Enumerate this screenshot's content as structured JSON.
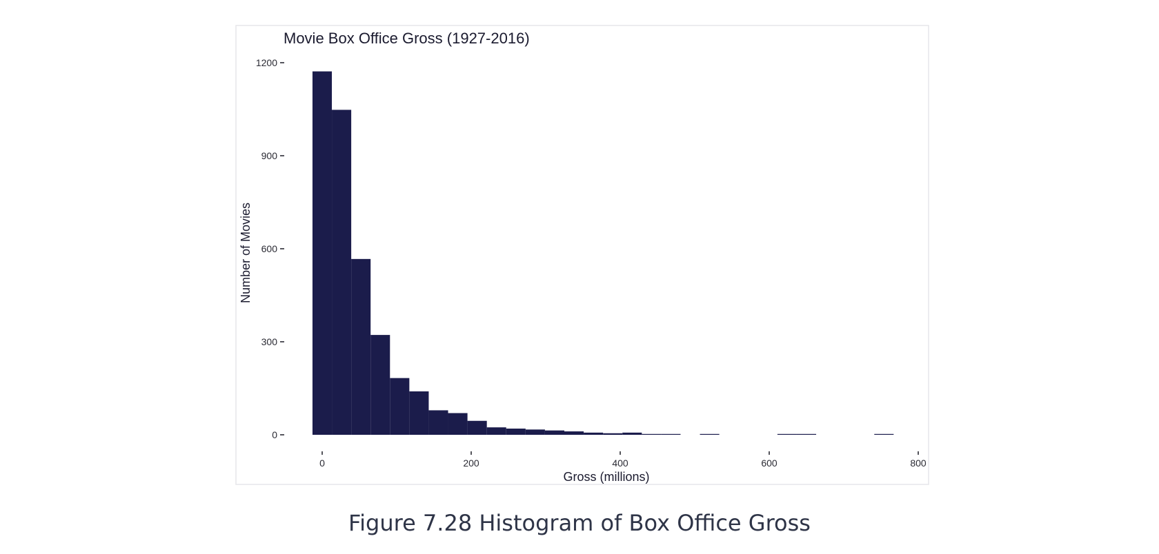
{
  "chart_data": {
    "type": "bar",
    "title": "Movie Box Office Gross (1927-2016)",
    "xlabel": "Gross (millions)",
    "ylabel": "Number of Movies",
    "xlim": [
      -15,
      800
    ],
    "ylim": [
      0,
      1200
    ],
    "xticks": [
      0,
      200,
      400,
      600,
      800
    ],
    "yticks": [
      0,
      300,
      600,
      900,
      1200
    ],
    "bin_width": 26,
    "bins": [
      {
        "start": -13,
        "end": 13,
        "count": 1172
      },
      {
        "start": 13,
        "end": 39,
        "count": 1048
      },
      {
        "start": 39,
        "end": 65,
        "count": 567
      },
      {
        "start": 65,
        "end": 91,
        "count": 322
      },
      {
        "start": 91,
        "end": 117,
        "count": 183
      },
      {
        "start": 117,
        "end": 143,
        "count": 140
      },
      {
        "start": 143,
        "end": 169,
        "count": 79
      },
      {
        "start": 169,
        "end": 195,
        "count": 70
      },
      {
        "start": 195,
        "end": 221,
        "count": 45
      },
      {
        "start": 221,
        "end": 247,
        "count": 24
      },
      {
        "start": 247,
        "end": 273,
        "count": 20
      },
      {
        "start": 273,
        "end": 299,
        "count": 17
      },
      {
        "start": 299,
        "end": 325,
        "count": 14
      },
      {
        "start": 325,
        "end": 351,
        "count": 11
      },
      {
        "start": 351,
        "end": 377,
        "count": 7
      },
      {
        "start": 377,
        "end": 403,
        "count": 5
      },
      {
        "start": 403,
        "end": 429,
        "count": 7
      },
      {
        "start": 429,
        "end": 455,
        "count": 2
      },
      {
        "start": 455,
        "end": 481,
        "count": 2
      },
      {
        "start": 507,
        "end": 533,
        "count": 1
      },
      {
        "start": 611,
        "end": 637,
        "count": 1
      },
      {
        "start": 637,
        "end": 663,
        "count": 1
      },
      {
        "start": 741,
        "end": 767,
        "count": 1
      }
    ],
    "grid": false,
    "bar_color": "#1b1c4b"
  },
  "caption": "Figure 7.28 Histogram of Box Office Gross"
}
